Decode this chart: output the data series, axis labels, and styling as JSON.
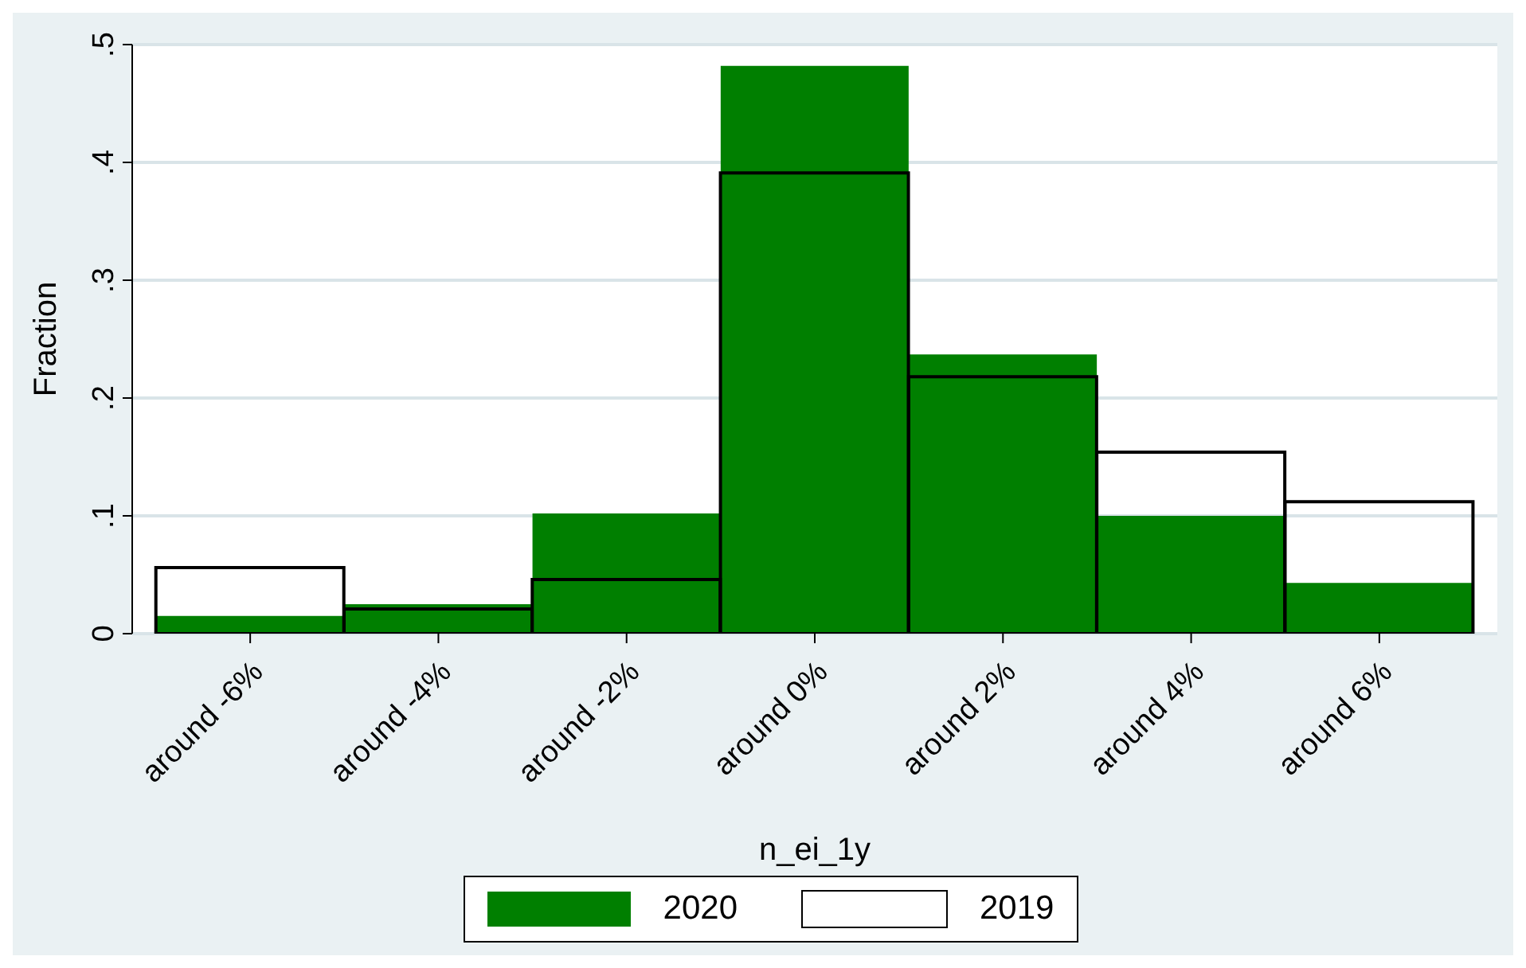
{
  "chart_data": {
    "type": "bar",
    "xlabel": "n_ei_1y",
    "ylabel": "Fraction",
    "categories": [
      "around -6%",
      "around -4%",
      "around -2%",
      "around 0%",
      "around 2%",
      "around 4%",
      "around 6%"
    ],
    "series": [
      {
        "name": "2020",
        "color": "#007f00",
        "values": [
          0.015,
          0.025,
          0.102,
          0.482,
          0.237,
          0.1,
          0.043
        ]
      },
      {
        "name": "2019",
        "color": "#000000",
        "values": [
          0.056,
          0.021,
          0.046,
          0.391,
          0.218,
          0.154,
          0.112
        ]
      }
    ],
    "ylim": [
      0,
      0.5
    ],
    "yticks": [
      {
        "value": 0,
        "label": "0"
      },
      {
        "value": 0.1,
        "label": ".1"
      },
      {
        "value": 0.2,
        "label": ".2"
      },
      {
        "value": 0.3,
        "label": ".3"
      },
      {
        "value": 0.4,
        "label": ".4"
      },
      {
        "value": 0.5,
        "label": ".5"
      }
    ],
    "grid": "y",
    "legend": "bottom"
  }
}
